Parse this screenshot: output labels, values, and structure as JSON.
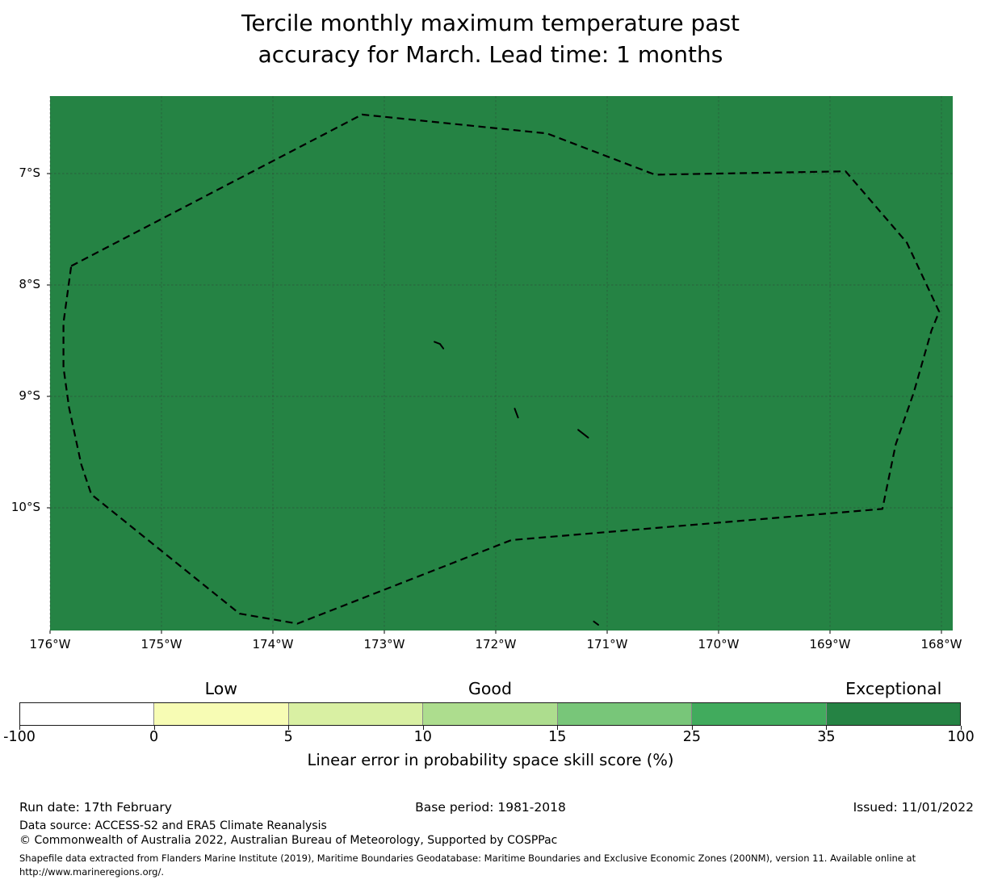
{
  "title": {
    "text": "Tercile monthly maximum temperature past\naccuracy for March. Lead time: 1 months"
  },
  "chart_data": {
    "type": "heatmap",
    "subtype": "filled-region-map-with-dashed-eez-boundary",
    "title": "Tercile monthly maximum temperature past accuracy for March. Lead time: 1 months",
    "x_ticks": [
      {
        "label": "176°W",
        "lon": -176
      },
      {
        "label": "175°W",
        "lon": -175
      },
      {
        "label": "174°W",
        "lon": -174
      },
      {
        "label": "173°W",
        "lon": -173
      },
      {
        "label": "172°W",
        "lon": -172
      },
      {
        "label": "171°W",
        "lon": -171
      },
      {
        "label": "170°W",
        "lon": -170
      },
      {
        "label": "169°W",
        "lon": -169
      },
      {
        "label": "168°W",
        "lon": -168
      }
    ],
    "y_ticks": [
      {
        "label": "7°S",
        "lat": 7
      },
      {
        "label": "8°S",
        "lat": 8
      },
      {
        "label": "9°S",
        "lat": 9
      },
      {
        "label": "10°S",
        "lat": 10
      }
    ],
    "map_extent": {
      "lon_west": -176.0,
      "lon_east": -167.9,
      "lat_north_s": 6.3,
      "lat_south_s": 11.1
    },
    "region_value_class": "Exceptional (35-100)",
    "colors": {
      "region_fill": "#258344",
      "boundary": "#000000",
      "gridline": "#2f2f2f"
    },
    "eez_boundary_lonlat": [
      [
        -175.81,
        7.83
      ],
      [
        -173.2,
        6.47
      ],
      [
        -171.54,
        6.64
      ],
      [
        -170.57,
        7.01
      ],
      [
        -168.86,
        6.98
      ],
      [
        -168.31,
        7.62
      ],
      [
        -168.02,
        8.24
      ],
      [
        -168.09,
        8.41
      ],
      [
        -168.25,
        8.97
      ],
      [
        -168.41,
        9.43
      ],
      [
        -168.53,
        10.01
      ],
      [
        -171.86,
        10.29
      ],
      [
        -173.78,
        11.04
      ],
      [
        -174.3,
        10.95
      ],
      [
        -175.63,
        9.88
      ],
      [
        -175.72,
        9.61
      ],
      [
        -175.83,
        9.1
      ],
      [
        -175.88,
        8.74
      ],
      [
        -175.88,
        8.34
      ]
    ],
    "islands_lonlat": [
      [
        [
          -172.55,
          8.51
        ],
        [
          -172.5,
          8.53
        ],
        [
          -172.47,
          8.57
        ]
      ],
      [
        [
          -171.83,
          9.11
        ],
        [
          -171.8,
          9.19
        ]
      ],
      [
        [
          -171.26,
          9.3
        ],
        [
          -171.17,
          9.37
        ]
      ],
      [
        [
          -171.12,
          11.02
        ],
        [
          -171.08,
          11.05
        ]
      ]
    ],
    "colorbar": {
      "label": "Linear error in probability space skill score (%)",
      "tick_labels": [
        "-100",
        "0",
        "5",
        "10",
        "15",
        "25",
        "35",
        "100"
      ],
      "segment_colors": [
        "#ffffff",
        "#f7fcb4",
        "#d9f0a3",
        "#addd8e",
        "#78c679",
        "#41ab5d",
        "#258344"
      ],
      "class_labels": [
        {
          "text": "Low",
          "segment_index": 1
        },
        {
          "text": "Good",
          "segment_index": 3
        },
        {
          "text": "Exceptional",
          "segment_index": 6
        }
      ]
    }
  },
  "footer": {
    "run_date": "Run date: 17th February",
    "base_period": "Base period: 1981-2018",
    "issued": "Issued: 11/01/2022",
    "data_source": "Data source: ACCESS-S2 and ERA5 Climate Reanalysis",
    "copyright": "© Commonwealth of Australia 2022, Australian Bureau of Meteorology, Supported by COSPPac",
    "shapefile_note": "Shapefile data extracted from Flanders Marine Institute (2019), Maritime Boundaries Geodatabase: Maritime Boundaries and Exclusive Economic Zones (200NM), version 11. Available online at http://www.marineregions.org/."
  }
}
